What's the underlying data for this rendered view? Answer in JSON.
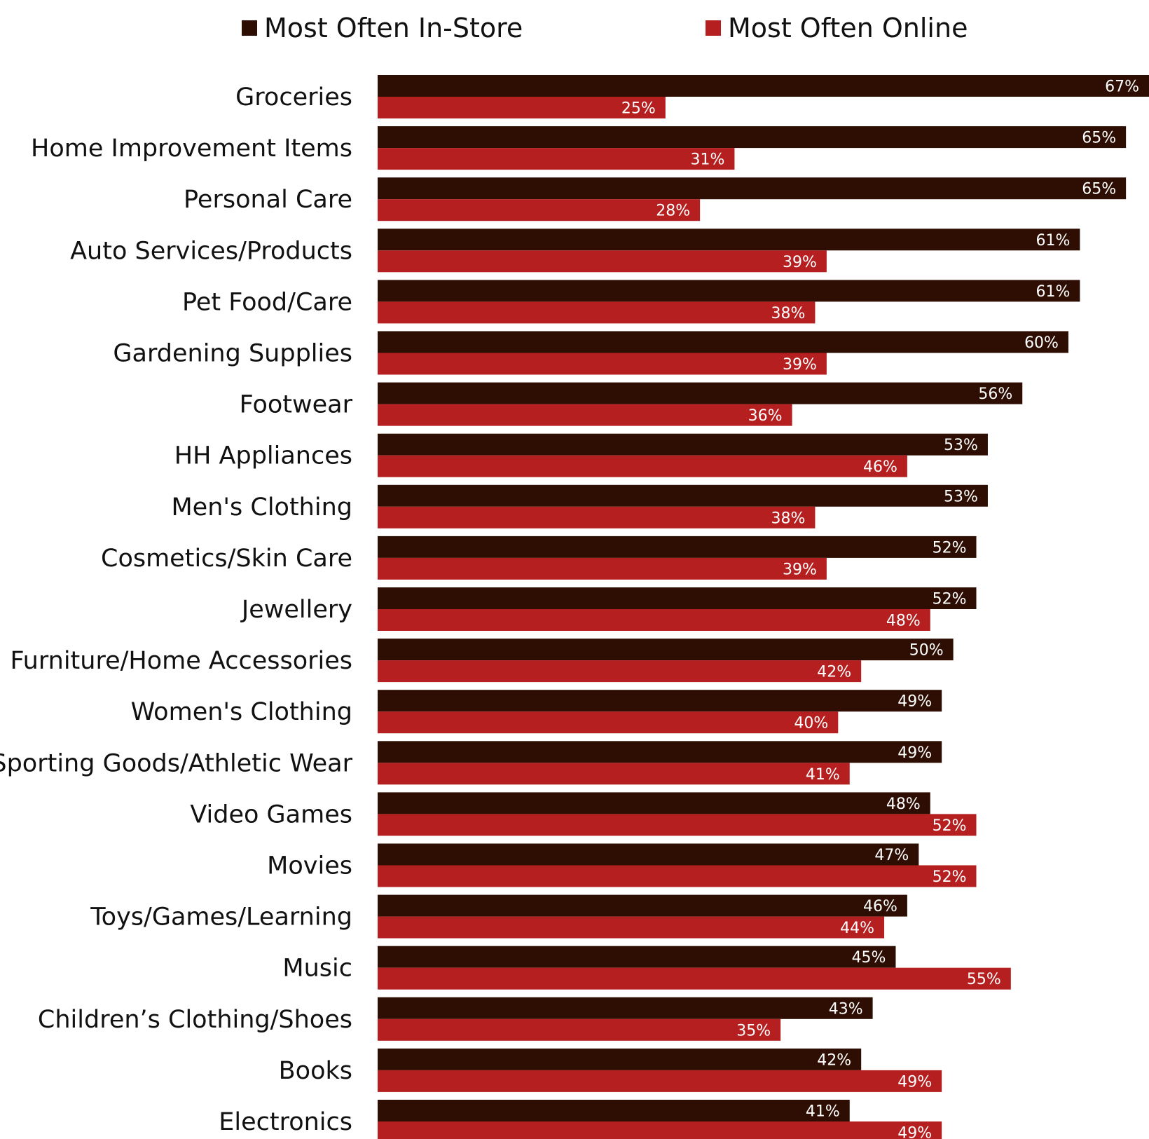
{
  "chart_data": {
    "type": "bar",
    "orientation": "horizontal",
    "title": "",
    "xlabel": "",
    "ylabel": "",
    "xlim": [
      0,
      67
    ],
    "grid": false,
    "legend_position": "top",
    "value_suffix": "%",
    "categories": [
      "Groceries",
      "Home Improvement Items",
      "Personal Care",
      "Auto Services/Products",
      "Pet Food/Care",
      "Gardening Supplies",
      "Footwear",
      "HH Appliances",
      "Men's Clothing",
      "Cosmetics/Skin Care",
      "Jewellery",
      "Furniture/Home Accessories",
      "Women's Clothing",
      "Sporting Goods/Athletic Wear",
      "Video Games",
      "Movies",
      "Toys/Games/Learning",
      "Music",
      "Children’s Clothing/Shoes",
      "Books",
      "Electronics"
    ],
    "series": [
      {
        "name": "Most Often In-Store",
        "color": "#2e0e02",
        "values": [
          67,
          65,
          65,
          61,
          61,
          60,
          56,
          53,
          53,
          52,
          52,
          50,
          49,
          49,
          48,
          47,
          46,
          45,
          43,
          42,
          41
        ]
      },
      {
        "name": "Most Often Online",
        "color": "#b51f1f",
        "values": [
          25,
          31,
          28,
          39,
          38,
          39,
          36,
          46,
          38,
          39,
          48,
          42,
          40,
          41,
          52,
          52,
          44,
          55,
          35,
          49,
          49
        ]
      }
    ]
  }
}
